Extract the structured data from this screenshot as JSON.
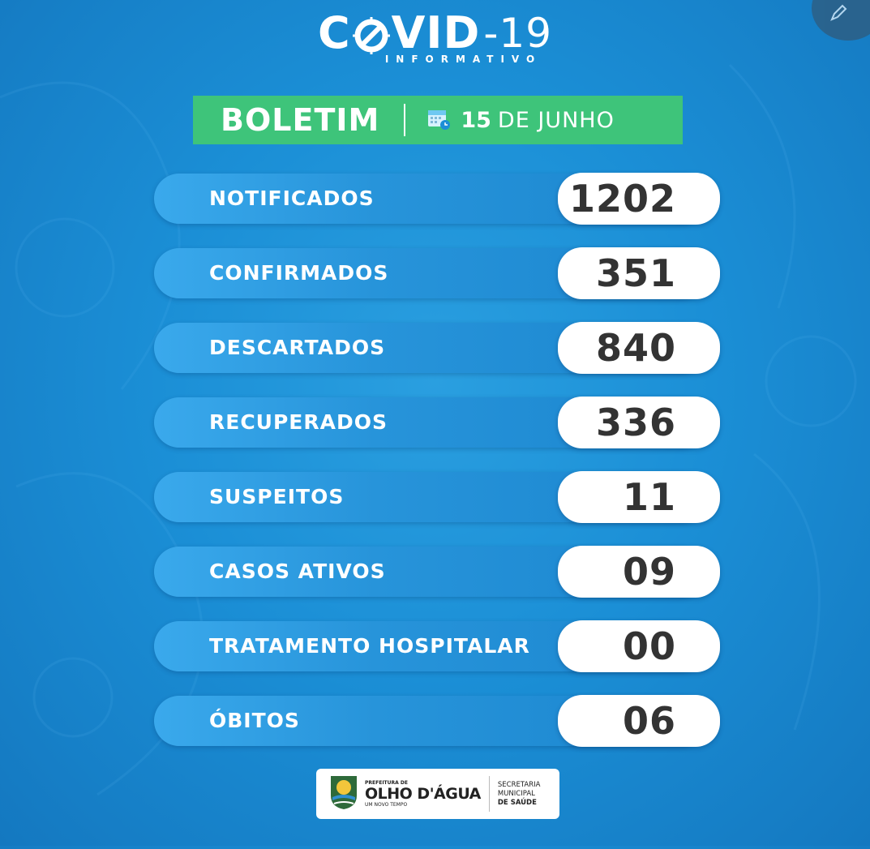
{
  "header": {
    "logo_prefix": "C",
    "logo_suffix": "VID",
    "logo_number": "-19",
    "logo_subtitle": "INFORMATIVO"
  },
  "bulletin": {
    "title": "BOLETIM",
    "day": "15",
    "month": "DE JUNHO"
  },
  "stats": [
    {
      "label": "NOTIFICADOS",
      "value": "1202"
    },
    {
      "label": "CONFIRMADOS",
      "value": "351"
    },
    {
      "label": "DESCARTADOS",
      "value": "840"
    },
    {
      "label": "RECUPERADOS",
      "value": "336"
    },
    {
      "label": "SUSPEITOS",
      "value": "11"
    },
    {
      "label": "CASOS ATIVOS",
      "value": "09"
    },
    {
      "label": "TRATAMENTO HOSPITALAR",
      "value": "00"
    },
    {
      "label": "ÓBITOS",
      "value": "06"
    }
  ],
  "footer": {
    "prefeitura_label": "PREFEITURA DE",
    "city_name": "OLHO D'ÁGUA",
    "motto": "UM NOVO TEMPO",
    "secretaria_line1": "SECRETARIA",
    "secretaria_line2": "MUNICIPAL",
    "secretaria_line3": "DE SAÚDE"
  },
  "colors": {
    "background": "#1b8fd6",
    "bulletin_bar": "#3ec47a",
    "value_pill": "#ffffff",
    "value_text": "#333333"
  }
}
